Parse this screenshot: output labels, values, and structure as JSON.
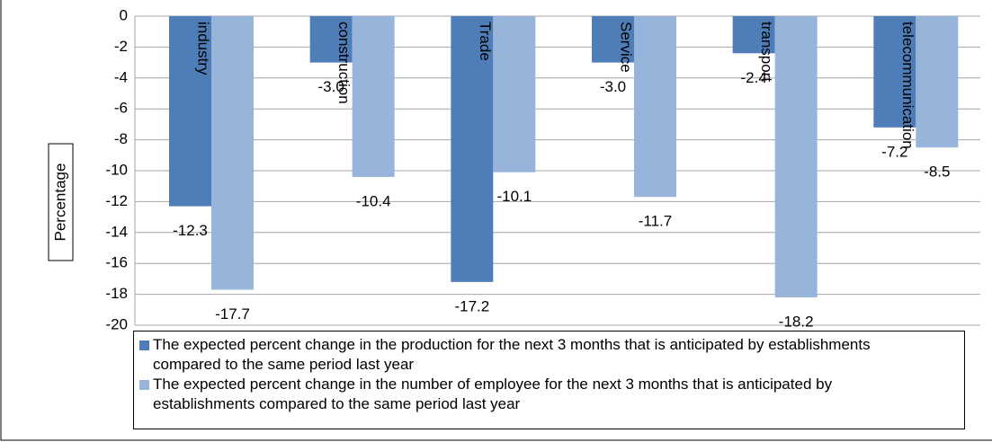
{
  "chart_data": {
    "type": "bar",
    "y_label": "Percentage",
    "categories": [
      "industry",
      "construction",
      "Trade",
      "Service",
      "transport",
      "telecommunication"
    ],
    "series": [
      {
        "name": "The expected percent change in the production for the next 3 months  that is anticipated by establishments compared to the same period last year",
        "color": "#4f7db8",
        "values": [
          -12.3,
          -3,
          -17.2,
          -3,
          -2.4,
          -7.2
        ],
        "value_labels": [
          "-12.3",
          "-3.0",
          "-17.2",
          "-3.0",
          "-2.4",
          "-7.2"
        ]
      },
      {
        "name": "The expected percent change in the number of employee for the next 3 months that is anticipated by establishments compared to the same period last year",
        "color": "#97b4da",
        "values": [
          -17.7,
          -10.4,
          -10.1,
          -11.7,
          -18.2,
          -8.5
        ],
        "value_labels": [
          "-17.7",
          "-10.4",
          "-10.1",
          "-11.7",
          "-18.2",
          "-8.5"
        ]
      }
    ],
    "ylim": [
      -20,
      0
    ],
    "yticks": [
      0,
      -2,
      -4,
      -6,
      -8,
      -10,
      -12,
      -14,
      -16,
      -18,
      -20
    ],
    "grid": true,
    "legend": "bottom"
  }
}
